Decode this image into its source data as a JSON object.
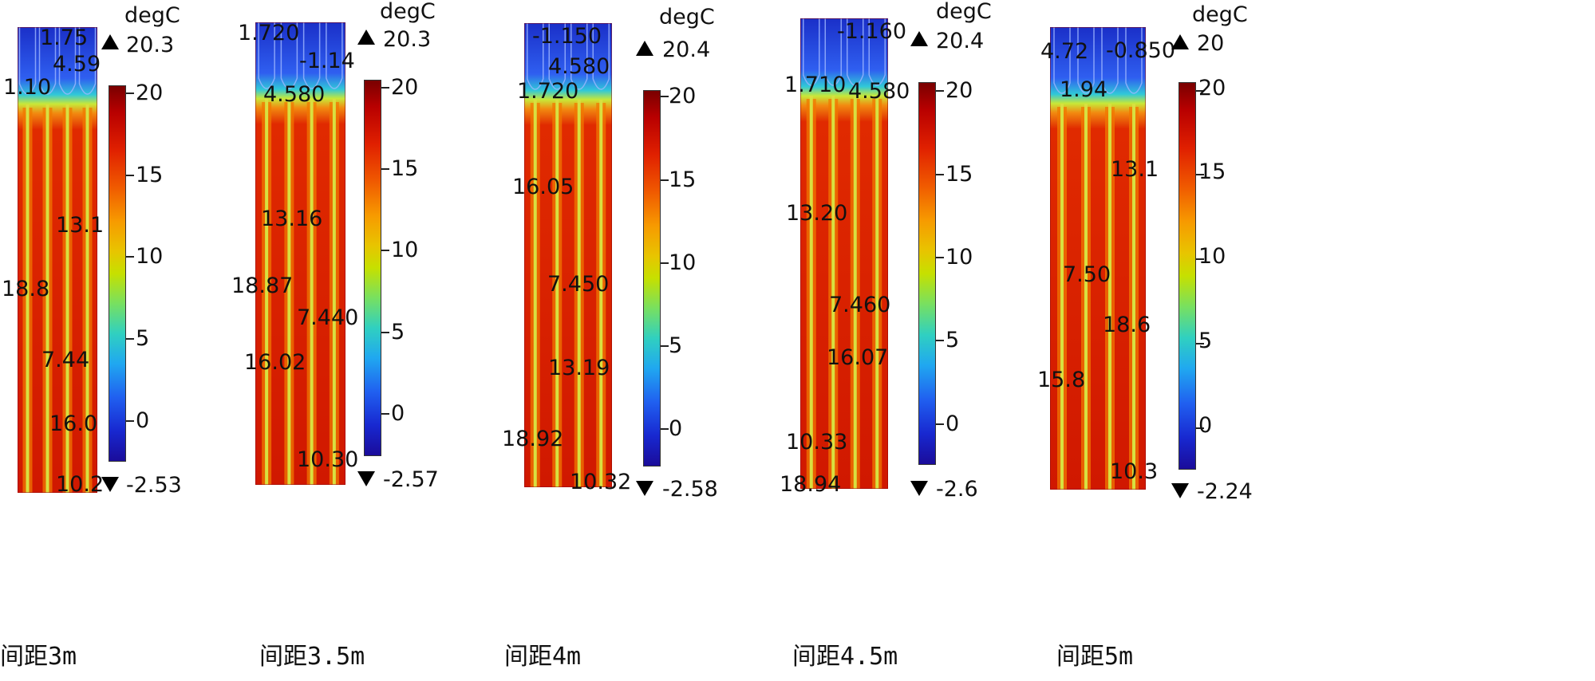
{
  "unit": "degC",
  "colorbar_ticks": [
    "20",
    "15",
    "10",
    "5",
    "0"
  ],
  "colorbar_tick_values": [
    20,
    15,
    10,
    5,
    0
  ],
  "colorscale": [
    "#7a0000",
    "#b80000",
    "#e02000",
    "#f05a00",
    "#f79a00",
    "#e8c400",
    "#c6e000",
    "#78e060",
    "#30d0c0",
    "#20a8f0",
    "#2060f0",
    "#1828d0",
    "#1a0c9a"
  ],
  "panels": [
    {
      "caption": "间距3m",
      "max_label": "20.3",
      "min_label": "-2.53",
      "pipes": 4,
      "contour_labels": [
        "1.75",
        "4.59",
        "1.10",
        "13.1",
        "18.8",
        "7.44",
        "16.0",
        "10.2"
      ]
    },
    {
      "caption": "间距3.5m",
      "max_label": "20.3",
      "min_label": "-2.57",
      "pipes": 4,
      "contour_labels": [
        "1.720",
        "-1.14",
        "4.580",
        "13.16",
        "18.87",
        "7.440",
        "16.02",
        "10.30"
      ]
    },
    {
      "caption": "间距4m",
      "max_label": "20.4",
      "min_label": "-2.58",
      "pipes": 4,
      "contour_labels": [
        "-1.150",
        "4.580",
        "1.720",
        "16.05",
        "7.450",
        "13.19",
        "18.92",
        "10.32"
      ]
    },
    {
      "caption": "间距4.5m",
      "max_label": "20.4",
      "min_label": "-2.6",
      "pipes": 4,
      "contour_labels": [
        "-1.160",
        "1.710",
        "4.580",
        "13.20",
        "7.460",
        "16.07",
        "10.33",
        "18.94"
      ]
    },
    {
      "caption": "间距5m",
      "max_label": "20",
      "min_label": "-2.24",
      "pipes": 4,
      "contour_labels": [
        "4.72",
        "-0.850",
        "1.94",
        "13.1",
        "7.50",
        "18.6",
        "15.8",
        "10.3"
      ]
    }
  ]
}
